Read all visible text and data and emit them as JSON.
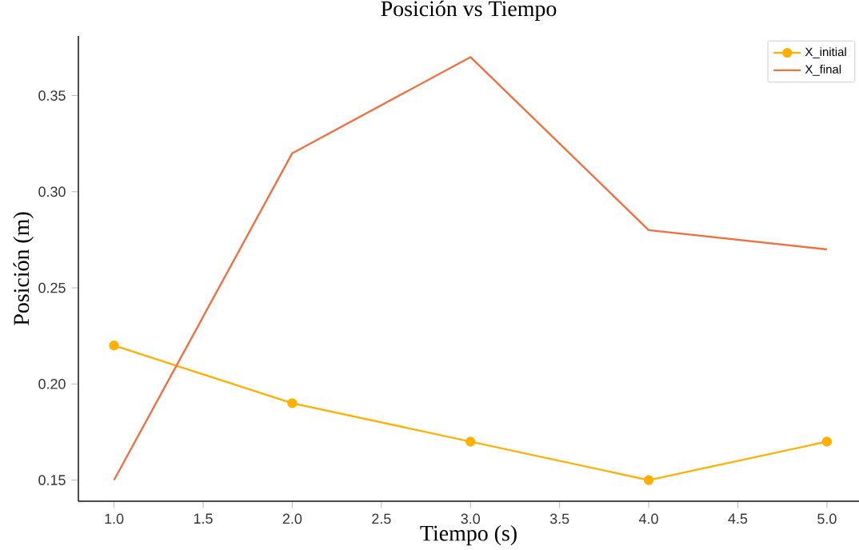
{
  "chart_data": {
    "type": "line",
    "title": "Posición vs Tiempo",
    "xlabel": "Tiempo (s)",
    "ylabel": "Posición (m)",
    "x": [
      1,
      2,
      3,
      4,
      5
    ],
    "series": [
      {
        "name": "X_initial",
        "color": "#ffb000",
        "marker": "circle",
        "values": [
          0.22,
          0.19,
          0.17,
          0.15,
          0.17
        ]
      },
      {
        "name": "X_final",
        "color": "#f07040",
        "marker": "none",
        "values": [
          0.15,
          0.32,
          0.37,
          0.28,
          0.27
        ]
      }
    ],
    "xlim": [
      0.8,
      5.18
    ],
    "ylim": [
      0.139,
      0.381
    ],
    "xticks": [
      {
        "value": 1,
        "label": "1.0"
      },
      {
        "value": 1.5,
        "label": "1.5"
      },
      {
        "value": 2,
        "label": "2.0"
      },
      {
        "value": 2.5,
        "label": "2.5"
      },
      {
        "value": 3,
        "label": "3.0"
      },
      {
        "value": 3.5,
        "label": "3.5"
      },
      {
        "value": 4,
        "label": "4.0"
      },
      {
        "value": 4.5,
        "label": "4.5"
      },
      {
        "value": 5,
        "label": "5.0"
      }
    ],
    "yticks": [
      {
        "value": 0.15,
        "label": "0.15"
      },
      {
        "value": 0.2,
        "label": "0.20"
      },
      {
        "value": 0.25,
        "label": "0.25"
      },
      {
        "value": 0.3,
        "label": "0.30"
      },
      {
        "value": 0.35,
        "label": "0.35"
      }
    ],
    "legend": "top right",
    "grid": false
  }
}
